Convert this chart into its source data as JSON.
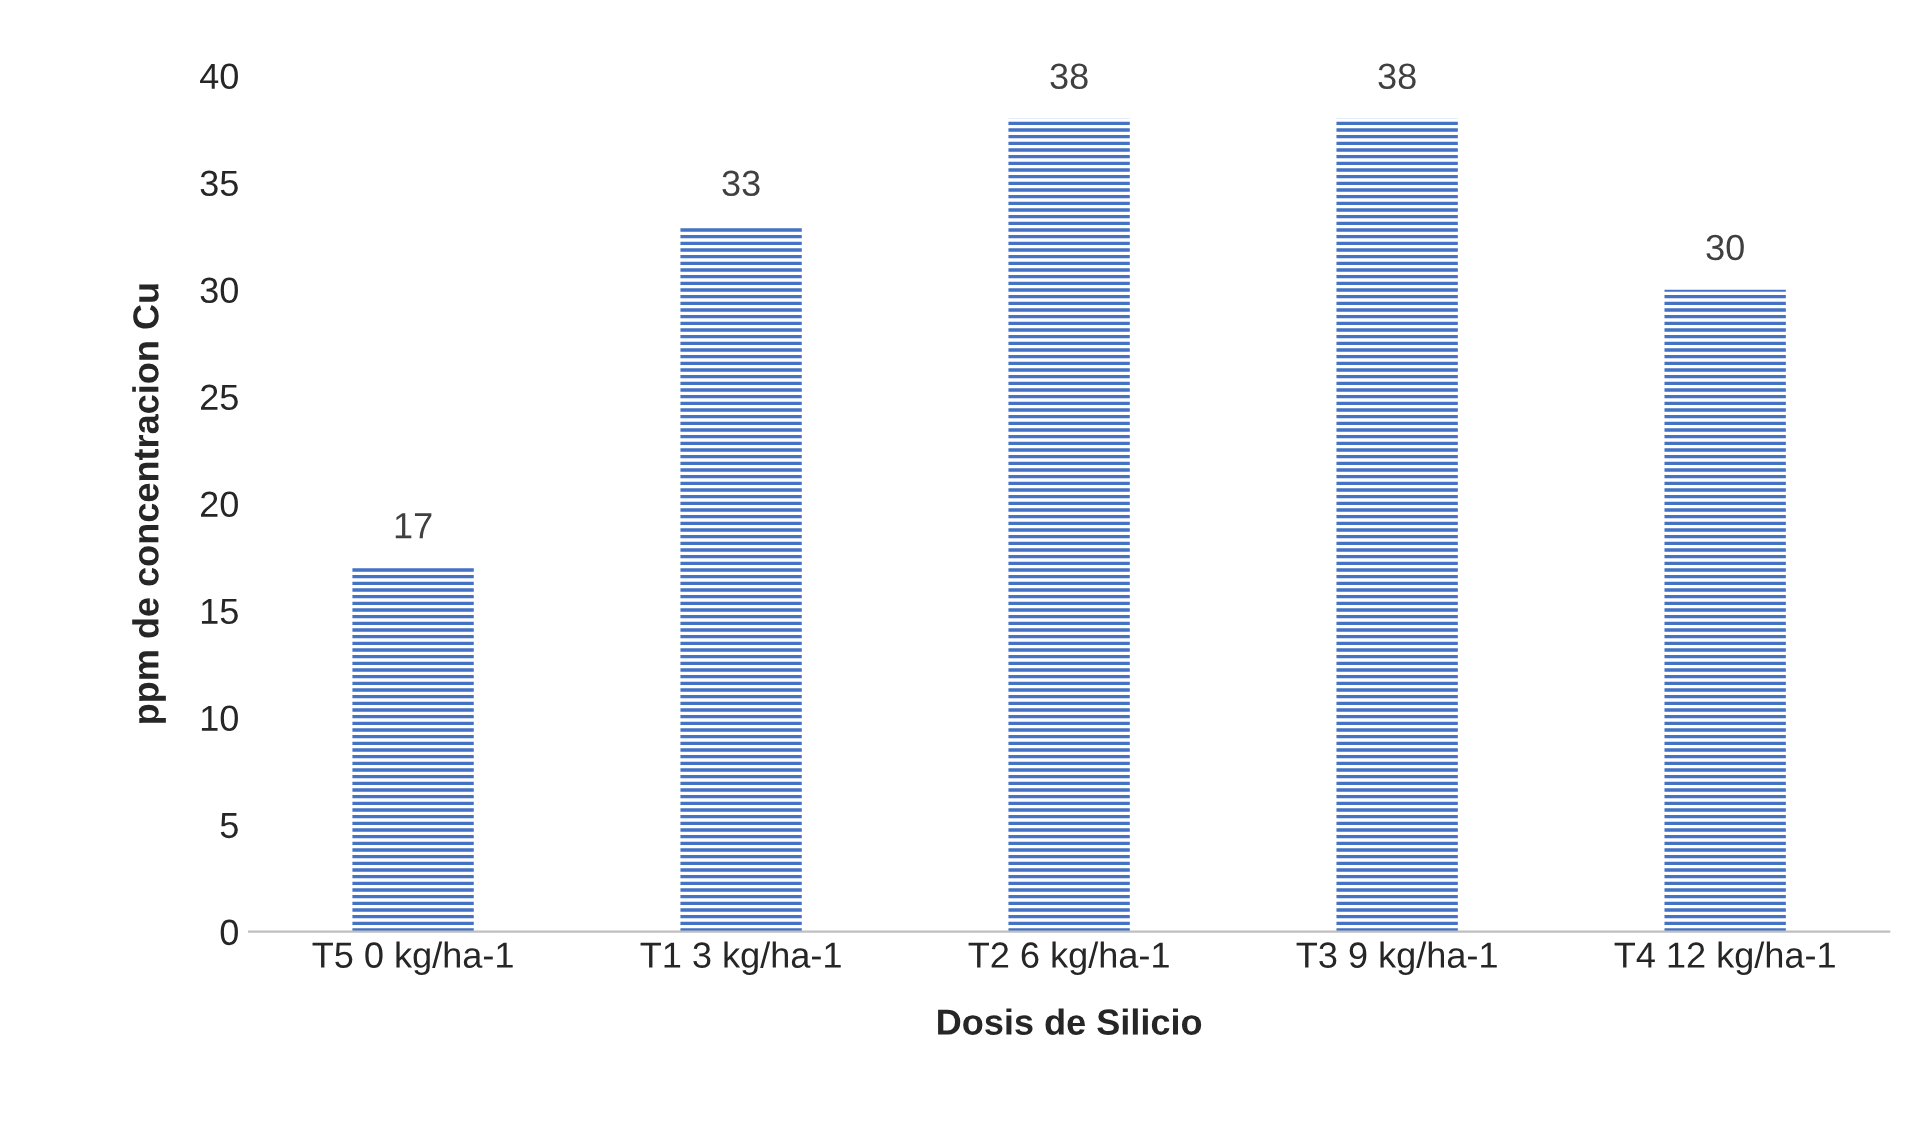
{
  "chart_data": {
    "type": "bar",
    "xlabel": "Dosis de Silicio",
    "ylabel": "ppm de concentracion Cu",
    "categories": [
      "T5 0 kg/ha-1",
      "T1 3 kg/ha-1",
      "T2 6 kg/ha-1",
      "T3 9 kg/ha-1",
      "T4 12 kg/ha-1"
    ],
    "values": [
      17,
      33,
      38,
      38,
      30
    ],
    "color": "#4472c4",
    "ylim": [
      0,
      40
    ],
    "yticks": [
      0,
      5,
      10,
      15,
      20,
      25,
      30,
      35,
      40
    ],
    "grid": false,
    "data_labels": true
  }
}
